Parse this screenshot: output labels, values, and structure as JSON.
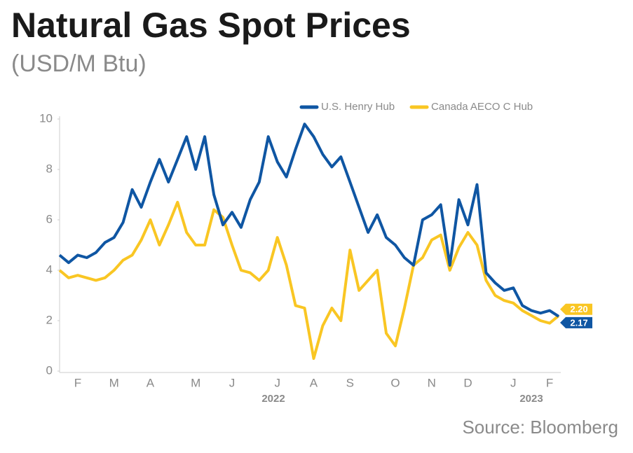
{
  "chart_data": {
    "type": "line",
    "title": "Natural Gas Spot Prices",
    "subtitle": "(USD/M Btu)",
    "source": "Source: Bloomberg",
    "year_labels": [
      "2022",
      "2023"
    ],
    "categories": [
      null,
      null,
      "F",
      null,
      null,
      null,
      "M",
      null,
      null,
      null,
      "A",
      null,
      null,
      null,
      null,
      "M",
      null,
      null,
      null,
      "J",
      null,
      null,
      null,
      null,
      "J",
      null,
      null,
      null,
      "A",
      null,
      null,
      null,
      "S",
      null,
      null,
      null,
      null,
      "O",
      null,
      null,
      null,
      "N",
      null,
      null,
      null,
      "D",
      null,
      null,
      null,
      null,
      "J",
      null,
      null,
      null,
      "F",
      null
    ],
    "series": [
      {
        "name": "U.S. Henry Hub",
        "color": "#0f56a3",
        "values": [
          4.6,
          4.3,
          4.6,
          4.5,
          4.7,
          5.1,
          5.3,
          5.9,
          7.2,
          6.5,
          7.5,
          8.4,
          7.5,
          8.4,
          9.3,
          8.0,
          9.3,
          7.0,
          5.8,
          6.3,
          5.7,
          6.8,
          7.5,
          9.3,
          8.3,
          7.7,
          8.8,
          9.8,
          9.3,
          8.6,
          8.1,
          8.5,
          7.5,
          6.5,
          5.5,
          6.2,
          5.3,
          5.0,
          4.5,
          4.2,
          6.0,
          6.2,
          6.6,
          4.2,
          6.8,
          5.8,
          7.4,
          3.9,
          3.5,
          3.2,
          3.3,
          2.6,
          2.4,
          2.3,
          2.4,
          2.17
        ],
        "value_labels": [
          null,
          null,
          null,
          null,
          null,
          null,
          null,
          null,
          null,
          null,
          null,
          null,
          null,
          null,
          null,
          null,
          null,
          null,
          null,
          null,
          null,
          null,
          null,
          null,
          null,
          null,
          null,
          null,
          null,
          null,
          null,
          null,
          null,
          null,
          null,
          null,
          null,
          null,
          null,
          null,
          null,
          null,
          null,
          null,
          null,
          null,
          null,
          null,
          null,
          null,
          null,
          null,
          null,
          null,
          null,
          "2.17"
        ]
      },
      {
        "name": "Canada AECO C Hub",
        "color": "#f9c623",
        "values": [
          4.0,
          3.7,
          3.8,
          3.7,
          3.6,
          3.7,
          4.0,
          4.4,
          4.6,
          5.2,
          6.0,
          5.0,
          5.8,
          6.7,
          5.5,
          5.0,
          5.0,
          6.4,
          6.1,
          5.0,
          4.0,
          3.9,
          3.6,
          4.0,
          5.3,
          4.2,
          2.6,
          2.5,
          0.5,
          1.8,
          2.5,
          2.0,
          4.8,
          3.2,
          3.6,
          4.0,
          1.5,
          1.0,
          2.5,
          4.2,
          4.5,
          5.2,
          5.4,
          4.0,
          4.9,
          5.5,
          5.0,
          3.6,
          3.0,
          2.8,
          2.7,
          2.4,
          2.2,
          2.0,
          1.9,
          2.2
        ],
        "value_labels": [
          null,
          null,
          null,
          null,
          null,
          null,
          null,
          null,
          null,
          null,
          null,
          null,
          null,
          null,
          null,
          null,
          null,
          null,
          null,
          null,
          null,
          null,
          null,
          null,
          null,
          null,
          null,
          null,
          null,
          null,
          null,
          null,
          null,
          null,
          null,
          null,
          null,
          null,
          null,
          null,
          null,
          null,
          null,
          null,
          null,
          null,
          null,
          null,
          null,
          null,
          null,
          null,
          null,
          null,
          null,
          "2.20"
        ]
      }
    ],
    "ylim": [
      0,
      10
    ],
    "yticks": [
      0,
      2,
      4,
      6,
      8,
      10
    ],
    "grid": false,
    "legend": "top-right"
  }
}
